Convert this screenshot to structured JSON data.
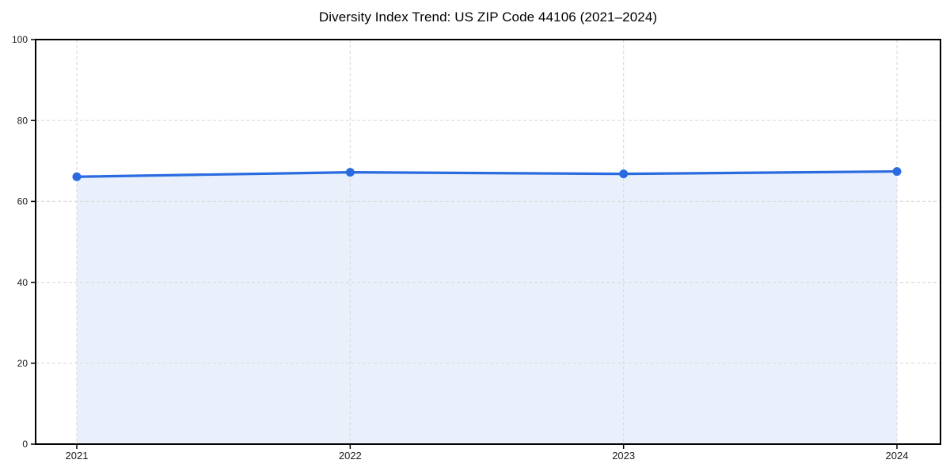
{
  "chart_data": {
    "type": "area",
    "title": "Diversity Index Trend: US ZIP Code 44106 (2021–2024)",
    "categories": [
      "2021",
      "2022",
      "2023",
      "2024"
    ],
    "series": [
      {
        "name": "Diversity Index",
        "values": [
          66.1,
          67.2,
          66.8,
          67.4
        ]
      }
    ],
    "xlabel": "",
    "ylabel": "",
    "ylim": [
      0,
      100
    ],
    "yticks": [
      0,
      20,
      40,
      60,
      80,
      100
    ],
    "grid": true,
    "grid_style": "dashed",
    "legend": "none",
    "marker": "circle",
    "colors": {
      "line": "#2a6be0",
      "fill": "rgba(42,107,224,0.10)",
      "grid": "#dcdcdc",
      "spine": "#000000",
      "tick_label": "#1a1a1a",
      "title": "#000000",
      "background": "#ffffff"
    }
  }
}
